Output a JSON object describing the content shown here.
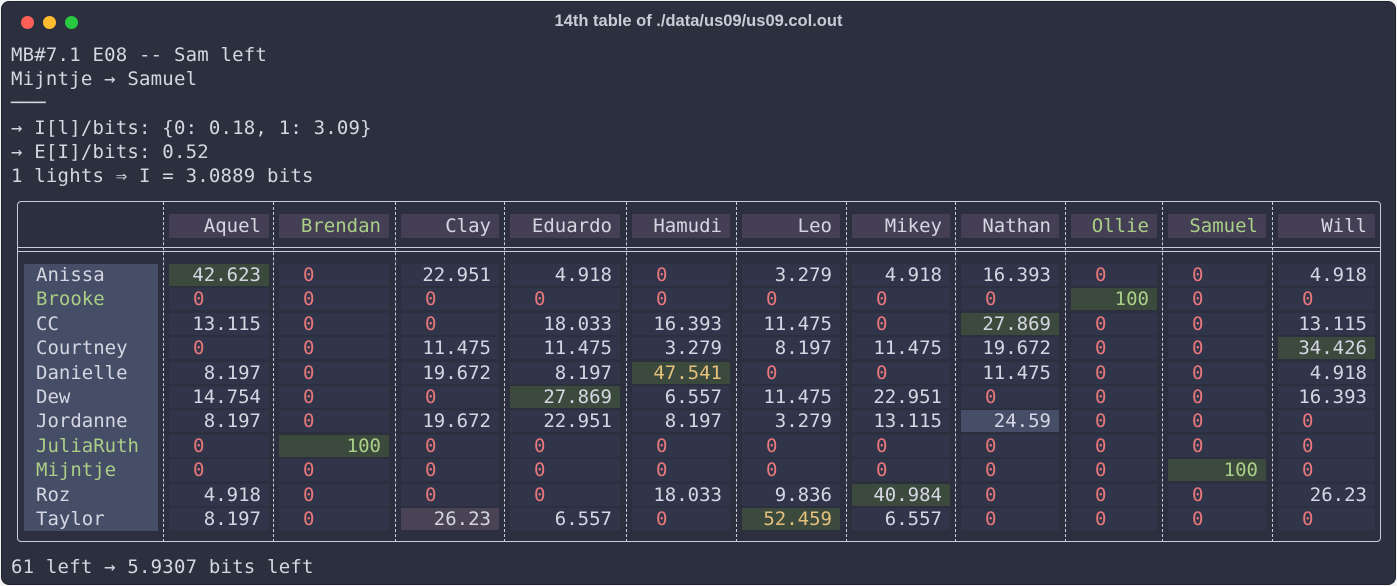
{
  "window": {
    "title": "14th table of ./data/us09/us09.col.out"
  },
  "info": {
    "line1": "MB#7.1 E08 -- Sam left",
    "line2": "Mijntje → Samuel",
    "line3": "───",
    "line4": "→ I[l]/bits: {0: 0.18, 1: 3.09}",
    "line5": "→ E[I]/bits: 0.52",
    "line6": "1 lights ⇒ I = 3.0889 bits"
  },
  "footer": {
    "text": "61 left → 5.9307 bits left"
  },
  "table": {
    "columns": [
      {
        "label": "Aquel",
        "green": false
      },
      {
        "label": "Brendan",
        "green": true
      },
      {
        "label": "Clay",
        "green": false
      },
      {
        "label": "Eduardo",
        "green": false
      },
      {
        "label": "Hamudi",
        "green": false
      },
      {
        "label": "Leo",
        "green": false
      },
      {
        "label": "Mikey",
        "green": false
      },
      {
        "label": "Nathan",
        "green": false
      },
      {
        "label": "Ollie",
        "green": true
      },
      {
        "label": "Samuel",
        "green": true
      },
      {
        "label": "Will",
        "green": false
      }
    ],
    "rows": [
      {
        "name": "Anissa",
        "green": false,
        "values": [
          "42.623",
          "0",
          "22.951",
          "4.918",
          "0",
          "3.279",
          "4.918",
          "16.393",
          "0",
          "0",
          "4.918"
        ],
        "hl": {
          "0": "green"
        }
      },
      {
        "name": "Brooke",
        "green": true,
        "values": [
          "0",
          "0",
          "0",
          "0",
          "0",
          "0",
          "0",
          "0",
          "100",
          "0",
          "0"
        ],
        "hl": {
          "8": "green"
        }
      },
      {
        "name": "CC",
        "green": false,
        "values": [
          "13.115",
          "0",
          "0",
          "18.033",
          "16.393",
          "11.475",
          "0",
          "27.869",
          "0",
          "0",
          "13.115"
        ],
        "hl": {
          "7": "green"
        }
      },
      {
        "name": "Courtney",
        "green": false,
        "values": [
          "0",
          "0",
          "11.475",
          "11.475",
          "3.279",
          "8.197",
          "11.475",
          "19.672",
          "0",
          "0",
          "34.426"
        ],
        "hl": {
          "10": "green"
        }
      },
      {
        "name": "Danielle",
        "green": false,
        "values": [
          "8.197",
          "0",
          "19.672",
          "8.197",
          "47.541",
          "0",
          "0",
          "11.475",
          "0",
          "0",
          "4.918"
        ],
        "hl": {
          "4": "yellow"
        }
      },
      {
        "name": "Dew",
        "green": false,
        "values": [
          "14.754",
          "0",
          "0",
          "27.869",
          "6.557",
          "11.475",
          "22.951",
          "0",
          "0",
          "0",
          "16.393"
        ],
        "hl": {
          "3": "green"
        }
      },
      {
        "name": "Jordanne",
        "green": false,
        "values": [
          "8.197",
          "0",
          "19.672",
          "22.951",
          "8.197",
          "3.279",
          "13.115",
          "24.59",
          "0",
          "0",
          "0"
        ],
        "hl": {
          "7": "blue"
        }
      },
      {
        "name": "JuliaRuth",
        "green": true,
        "values": [
          "0",
          "100",
          "0",
          "0",
          "0",
          "0",
          "0",
          "0",
          "0",
          "0",
          "0"
        ],
        "hl": {
          "1": "green"
        }
      },
      {
        "name": "Mijntje",
        "green": true,
        "values": [
          "0",
          "0",
          "0",
          "0",
          "0",
          "0",
          "0",
          "0",
          "0",
          "100",
          "0"
        ],
        "hl": {
          "9": "green"
        }
      },
      {
        "name": "Roz",
        "green": false,
        "values": [
          "4.918",
          "0",
          "0",
          "0",
          "18.033",
          "9.836",
          "40.984",
          "0",
          "0",
          "0",
          "26.23"
        ],
        "hl": {
          "6": "green"
        }
      },
      {
        "name": "Taylor",
        "green": false,
        "values": [
          "8.197",
          "0",
          "26.23",
          "6.557",
          "0",
          "52.459",
          "6.557",
          "0",
          "0",
          "0",
          "0"
        ],
        "hl": {
          "2": "purple",
          "5": "yellow"
        }
      }
    ]
  }
}
